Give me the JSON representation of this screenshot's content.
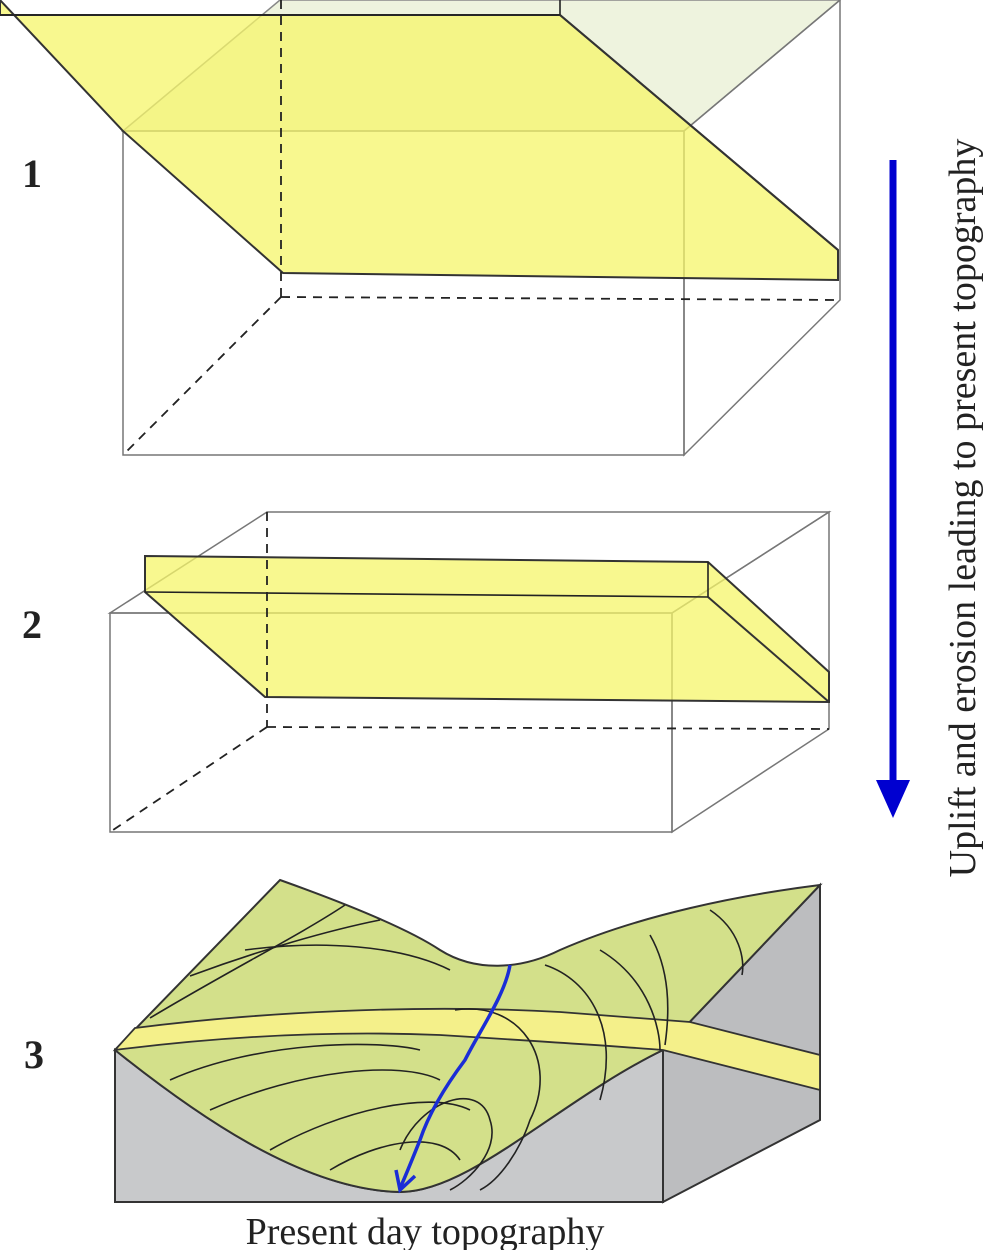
{
  "steps": [
    {
      "label": "1"
    },
    {
      "label": "2"
    },
    {
      "label": "3"
    }
  ],
  "process_label": "Uplift and erosion leading to present topography",
  "caption": "Present day topography"
}
